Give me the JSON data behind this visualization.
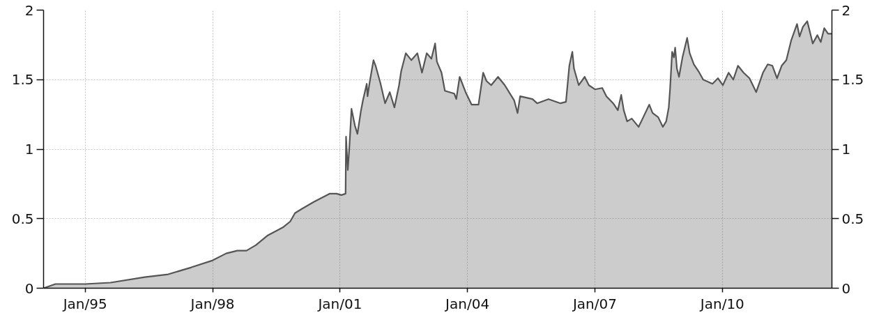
{
  "chart_data": {
    "type": "area",
    "x": [
      "1994-01-08",
      "1994-04-20",
      "1995-01-01",
      "1995-08-07",
      "1996-05-26",
      "1996-12-15",
      "1997-07-02",
      "1998-01-01",
      "1998-04-27",
      "1998-07-31",
      "1998-10-19",
      "1999-01-08",
      "1999-04-20",
      "1999-09-02",
      "1999-10-30",
      "1999-12-10",
      "2000-02-06",
      "2000-05-19",
      "2000-10-05",
      "2000-12-02",
      "2001-01-12",
      "2001-02-17",
      "2001-02-21",
      "2001-03-08",
      "2001-03-22",
      "2001-04-09",
      "2001-05-08",
      "2001-05-30",
      "2001-06-28",
      "2001-07-16",
      "2001-08-18",
      "2001-08-25",
      "2001-09-12",
      "2001-10-15",
      "2001-11-02",
      "2001-12-12",
      "2002-01-23",
      "2002-03-04",
      "2002-04-13",
      "2002-05-23",
      "2002-06-10",
      "2002-07-20",
      "2002-09-06",
      "2002-10-27",
      "2002-12-06",
      "2003-01-16",
      "2003-02-25",
      "2003-03-29",
      "2003-04-13",
      "2003-05-23",
      "2003-06-21",
      "2003-09-09",
      "2003-09-27",
      "2003-10-26",
      "2003-12-16",
      "2004-02-06",
      "2004-04-05",
      "2004-05-15",
      "2004-06-13",
      "2004-07-23",
      "2004-09-20",
      "2004-11-17",
      "2005-02-06",
      "2005-03-07",
      "2005-03-29",
      "2005-07-13",
      "2005-08-22",
      "2005-11-28",
      "2006-03-11",
      "2006-04-27",
      "2006-05-26",
      "2006-06-21",
      "2006-07-05",
      "2006-08-15",
      "2006-10-05",
      "2006-11-10",
      "2007-01-01",
      "2007-03-05",
      "2007-04-10",
      "2007-06-07",
      "2007-07-17",
      "2007-08-15",
      "2007-09-06",
      "2007-10-05",
      "2007-11-14",
      "2008-01-12",
      "2008-02-21",
      "2008-04-12",
      "2008-05-11",
      "2008-06-28",
      "2008-08-07",
      "2008-09-05",
      "2008-09-27",
      "2008-10-08",
      "2008-10-26",
      "2008-11-10",
      "2008-11-21",
      "2008-12-06",
      "2008-12-24",
      "2009-01-23",
      "2009-03-04",
      "2009-03-26",
      "2009-05-01",
      "2009-06-10",
      "2009-07-20",
      "2009-10-08",
      "2009-11-24",
      "2010-01-05",
      "2010-02-24",
      "2010-04-05",
      "2010-05-15",
      "2010-07-02",
      "2010-08-22",
      "2010-10-19",
      "2010-12-16",
      "2011-01-26",
      "2011-03-07",
      "2011-04-16",
      "2011-05-26",
      "2011-07-05",
      "2011-08-15",
      "2011-10-05",
      "2011-10-27",
      "2011-11-25",
      "2012-01-01",
      "2012-01-19",
      "2012-02-17",
      "2012-03-28",
      "2012-04-26",
      "2012-05-26",
      "2012-06-28",
      "2012-07-31"
    ],
    "series": [
      {
        "color": "#555555",
        "values": [
          0.0,
          0.03,
          0.03,
          0.04,
          0.08,
          0.1,
          0.15,
          0.2,
          0.25,
          0.27,
          0.27,
          0.31,
          0.38,
          0.44,
          0.48,
          0.54,
          0.57,
          0.62,
          0.68,
          0.68,
          0.67,
          0.68,
          1.09,
          0.85,
          1.02,
          1.29,
          1.17,
          1.11,
          1.27,
          1.35,
          1.47,
          1.38,
          1.48,
          1.64,
          1.6,
          1.48,
          1.33,
          1.41,
          1.3,
          1.46,
          1.56,
          1.69,
          1.64,
          1.69,
          1.55,
          1.69,
          1.65,
          1.76,
          1.63,
          1.55,
          1.42,
          1.4,
          1.36,
          1.52,
          1.41,
          1.32,
          1.32,
          1.55,
          1.49,
          1.46,
          1.52,
          1.46,
          1.35,
          1.26,
          1.38,
          1.36,
          1.33,
          1.36,
          1.33,
          1.34,
          1.6,
          1.7,
          1.58,
          1.46,
          1.52,
          1.46,
          1.43,
          1.44,
          1.38,
          1.33,
          1.28,
          1.39,
          1.28,
          1.2,
          1.22,
          1.16,
          1.23,
          1.32,
          1.26,
          1.23,
          1.16,
          1.2,
          1.3,
          1.43,
          1.7,
          1.66,
          1.73,
          1.58,
          1.52,
          1.66,
          1.8,
          1.69,
          1.61,
          1.56,
          1.5,
          1.47,
          1.51,
          1.46,
          1.55,
          1.5,
          1.6,
          1.55,
          1.51,
          1.41,
          1.55,
          1.61,
          1.6,
          1.51,
          1.6,
          1.64,
          1.78,
          1.9,
          1.81,
          1.88,
          1.92,
          1.86,
          1.76,
          1.82,
          1.77,
          1.87,
          1.83,
          1.83
        ]
      }
    ],
    "xlim": [
      "1994-01-08",
      "2012-07-31"
    ],
    "xticks": [
      {
        "value": "1995-01-01",
        "label": "Jan/95"
      },
      {
        "value": "1998-01-01",
        "label": "Jan/98"
      },
      {
        "value": "2001-01-01",
        "label": "Jan/01"
      },
      {
        "value": "2004-01-01",
        "label": "Jan/04"
      },
      {
        "value": "2007-01-01",
        "label": "Jan/07"
      },
      {
        "value": "2010-01-01",
        "label": "Jan/10"
      }
    ],
    "ylim": [
      0,
      2
    ],
    "yticks": [
      0,
      0.5,
      1,
      1.5,
      2
    ],
    "y2lim": [
      0,
      2
    ],
    "y2ticks": [
      0,
      0.5,
      1,
      1.5,
      2
    ],
    "grid": true
  }
}
